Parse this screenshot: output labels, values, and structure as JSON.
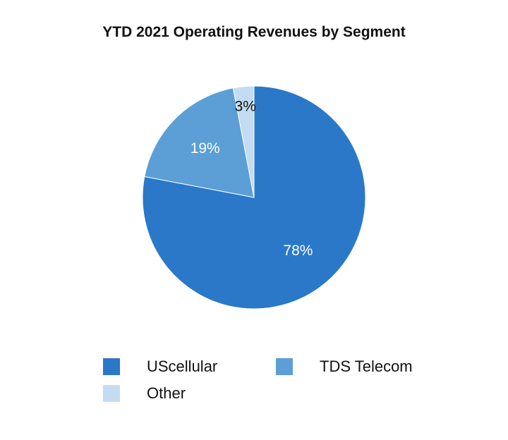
{
  "chart_data": {
    "type": "pie",
    "title": "YTD 2021 Operating Revenues by Segment",
    "slices": [
      {
        "name": "UScellular",
        "value": 78,
        "label": "78%",
        "color": "#2b78c8",
        "label_color": "#ffffff"
      },
      {
        "name": "TDS Telecom",
        "value": 19,
        "label": "19%",
        "color": "#5b9fd6",
        "label_color": "#ffffff"
      },
      {
        "name": "Other",
        "value": 3,
        "label": "3%",
        "color": "#c3dcf1",
        "label_color": "#111111"
      }
    ],
    "start_angle_deg": 0,
    "direction": "clockwise",
    "legend": {
      "position": "bottom"
    }
  }
}
